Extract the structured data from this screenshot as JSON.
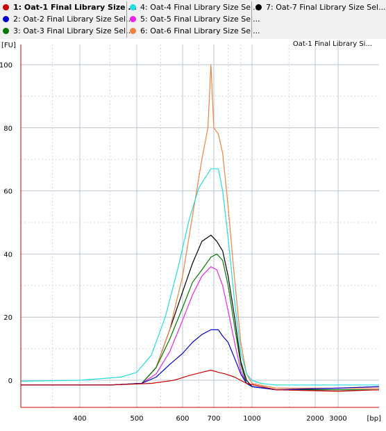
{
  "legend": {
    "items": [
      {
        "label": "1: Oat-1 Final Library Size ...",
        "color": "#cc0000",
        "bold": true
      },
      {
        "label": "2: Oat-2 Final Library Size Sel...",
        "color": "#0000cc",
        "bold": false
      },
      {
        "label": "3: Oat-3 Final Library Size Sel...",
        "color": "#007700",
        "bold": false
      },
      {
        "label": "4: Oat-4 Final Library Size Sel...",
        "color": "#22dddd",
        "bold": false
      },
      {
        "label": "5: Oat-5 Final Library Size Sel...",
        "color": "#ee22ee",
        "bold": false
      },
      {
        "label": "6: Oat-6 Final Library Size Sel...",
        "color": "#f08040",
        "bold": false
      },
      {
        "label": "7: Oat-7 Final Library Size Sel...",
        "color": "#000000",
        "bold": false
      }
    ]
  },
  "chart": {
    "y_unit": "[FU]",
    "x_unit": "[bp]",
    "title": "Oat-1 Final Library Si..."
  },
  "chart_data": {
    "type": "line",
    "title": "Oat-1 Final Library Si...",
    "xlabel": "[bp]",
    "ylabel": "[FU]",
    "x_scale": "log",
    "x_ticks": [
      400,
      500,
      600,
      700,
      1000,
      2000,
      3000
    ],
    "y_ticks": [
      0,
      20,
      40,
      60,
      80,
      100
    ],
    "ylim": [
      -8,
      105
    ],
    "grid": true,
    "series": [
      {
        "name": "1: Oat-1 Final Library Size ...",
        "color": "#cc0000",
        "x": [
          300,
          450,
          530,
          580,
          620,
          660,
          690,
          730,
          780,
          850,
          950,
          1300,
          3000,
          4000
        ],
        "y": [
          -1.5,
          -1.5,
          -1,
          0,
          1.5,
          2.5,
          3.2,
          2.5,
          2,
          1,
          -1,
          -3,
          -3.5,
          -3
        ]
      },
      {
        "name": "2: Oat-2 Final Library Size Sel...",
        "color": "#0000cc",
        "x": [
          300,
          450,
          510,
          540,
          570,
          600,
          630,
          660,
          690,
          730,
          760,
          800,
          850,
          900,
          950,
          1000,
          1300,
          3000,
          4000
        ],
        "y": [
          -1.5,
          -1.5,
          -1,
          1,
          5,
          8.5,
          12,
          14.5,
          16,
          16,
          14,
          12,
          7,
          2,
          -1,
          -2,
          -3,
          -2.5,
          -2
        ]
      },
      {
        "name": "3: Oat-3 Final Library Size Sel...",
        "color": "#007700",
        "x": [
          300,
          450,
          510,
          540,
          570,
          600,
          630,
          660,
          690,
          720,
          760,
          800,
          850,
          900,
          950,
          1000,
          1300,
          3000,
          4000
        ],
        "y": [
          -1.5,
          -1.5,
          -1,
          4,
          13,
          23,
          31,
          35,
          39,
          40,
          38,
          30,
          17,
          5,
          -1,
          -2,
          -3,
          -3,
          -3
        ]
      },
      {
        "name": "4: Oat-4 Final Library Size Sel...",
        "color": "#22dddd",
        "x": [
          300,
          400,
          470,
          500,
          530,
          560,
          590,
          620,
          650,
          690,
          730,
          760,
          800,
          850,
          900,
          950,
          1000,
          1100,
          1300,
          3000,
          4000
        ],
        "y": [
          -0.3,
          0,
          1,
          2.5,
          8,
          20,
          36,
          51,
          61,
          67,
          67,
          60,
          45,
          25,
          9,
          2,
          0,
          -1,
          -1.5,
          -1.5,
          -1.5
        ]
      },
      {
        "name": "5: Oat-5 Final Library Size Sel...",
        "color": "#ee22ee",
        "x": [
          300,
          450,
          510,
          540,
          570,
          600,
          630,
          660,
          690,
          720,
          760,
          800,
          850,
          900,
          950,
          1000,
          1300,
          3000,
          4000
        ],
        "y": [
          -1.5,
          -1.5,
          -1,
          2,
          9,
          19,
          27,
          33,
          36,
          35,
          30,
          22,
          12,
          3,
          -1,
          -2,
          -3,
          -3,
          -3
        ]
      },
      {
        "name": "6: Oat-6 Final Library Size Sel...",
        "color": "#f08040",
        "x": [
          300,
          450,
          510,
          540,
          570,
          600,
          630,
          660,
          680,
          690,
          700,
          730,
          760,
          800,
          850,
          900,
          950,
          1000,
          1300,
          3000,
          4000
        ],
        "y": [
          -1.5,
          -1.5,
          -1,
          4,
          16,
          33,
          52,
          70,
          80,
          100,
          80,
          78,
          72,
          55,
          32,
          12,
          2,
          -1,
          -2.5,
          -2.5,
          -2.5
        ]
      },
      {
        "name": "7: Oat-7 Final Library Size Sel...",
        "color": "#000000",
        "x": [
          300,
          450,
          510,
          540,
          570,
          600,
          630,
          660,
          690,
          720,
          760,
          800,
          850,
          900,
          950,
          1000,
          1300,
          3000,
          4000
        ],
        "y": [
          -1.5,
          -1.5,
          -1,
          4,
          16,
          28,
          37,
          44,
          46,
          44,
          41,
          33,
          20,
          6,
          0,
          -2,
          -3,
          -3,
          -3
        ]
      }
    ]
  }
}
